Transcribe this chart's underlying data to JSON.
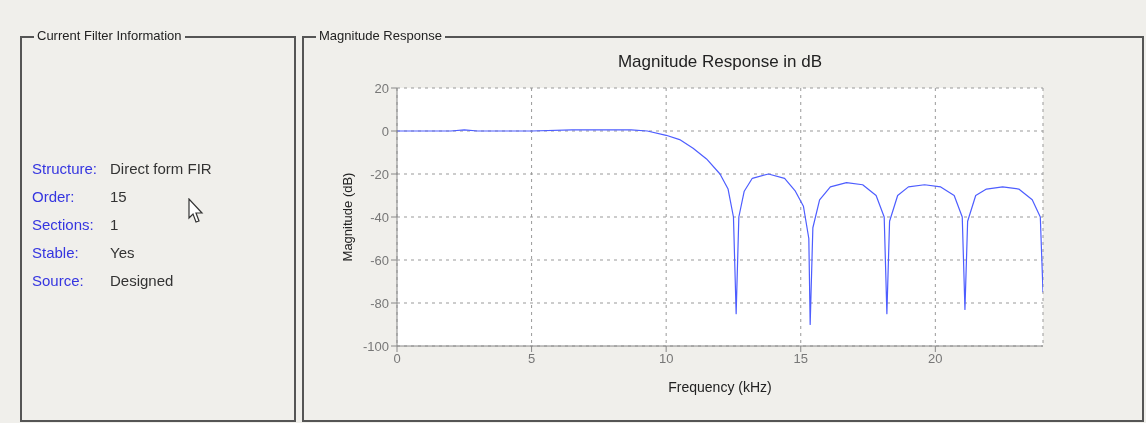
{
  "chart_data": [
    {
      "type": "other",
      "title": "Current Filter Information",
      "annotations": [
        "Structure:",
        "Direct form FIR",
        "Order:",
        "15",
        "Sections:",
        "1",
        "Stable:",
        "Yes",
        "Source:",
        "Designed"
      ]
    },
    {
      "type": "line",
      "title": "Magnitude Response",
      "subtitle": "Magnitude Response in dB",
      "xlabel": "Frequency (kHz)",
      "ylabel": "Magnitude (dB)",
      "x": [
        0,
        2,
        2.5,
        3,
        5,
        6.5,
        7.5,
        8.7,
        9.3,
        10,
        10.5,
        11,
        11.5,
        12,
        12.3,
        12.5,
        12.6,
        12.7,
        12.9,
        13.2,
        13.8,
        14.4,
        14.8,
        15.1,
        15.3,
        15.35,
        15.45,
        15.7,
        16.1,
        16.7,
        17.3,
        17.8,
        18.1,
        18.2,
        18.3,
        18.6,
        19,
        19.6,
        20.2,
        20.7,
        21,
        21.1,
        21.2,
        21.5,
        21.9,
        22.5,
        23.1,
        23.6,
        23.9,
        24
      ],
      "series": [
        {
          "color": "#4d5dff",
          "values": [
            0,
            0,
            0.5,
            0,
            0,
            0.5,
            0.5,
            0.5,
            0,
            -2,
            -4,
            -8,
            -13,
            -20,
            -27,
            -40,
            -85,
            -40,
            -28,
            -22,
            -20,
            -22,
            -28,
            -35,
            -50,
            -90,
            -45,
            -32,
            -26,
            -24,
            -25,
            -30,
            -40,
            -85,
            -42,
            -30,
            -26,
            -25,
            -26,
            -30,
            -40,
            -83,
            -42,
            -30,
            -27,
            -26,
            -27,
            -32,
            -40,
            -75
          ]
        }
      ],
      "xlim": [
        0,
        24
      ],
      "xticks": [
        0,
        5,
        10,
        15,
        20
      ],
      "ylim": [
        -100,
        20
      ],
      "yticks": [
        -100,
        -80,
        -60,
        -40,
        -20,
        0,
        20
      ],
      "grid": true,
      "marker": "none",
      "line_style": "solid"
    }
  ]
}
